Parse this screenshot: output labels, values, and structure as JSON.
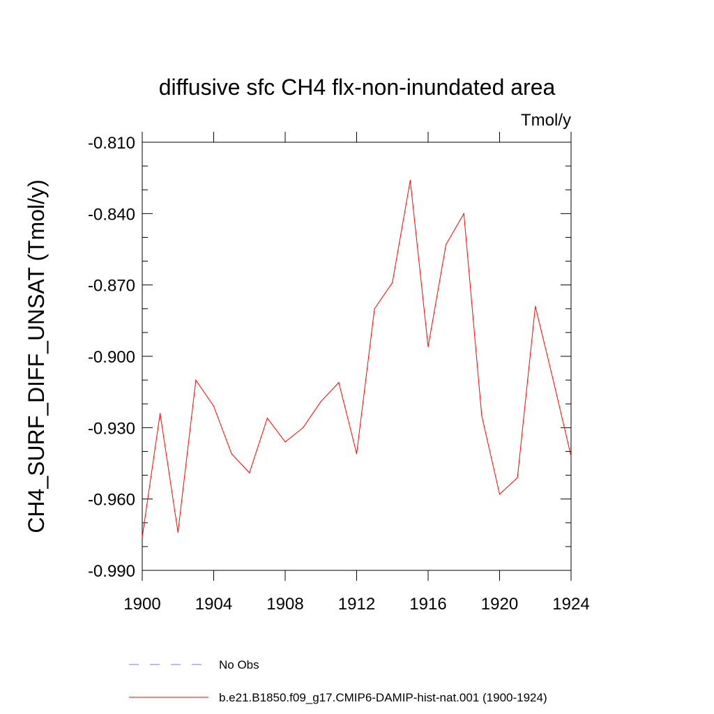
{
  "chart_data": {
    "type": "line",
    "title": "diffusive sfc CH4 flx-non-inundated area",
    "units_label": "Tmol/y",
    "ylabel": "CH4_SURF_DIFF_UNSAT  (Tmol/y)",
    "xlabel": "",
    "xlim": [
      1900,
      1924
    ],
    "ylim": [
      -0.99,
      -0.81
    ],
    "xticks": [
      1900,
      1904,
      1908,
      1912,
      1916,
      1920,
      1924
    ],
    "xtick_labels": [
      "1900",
      "1904",
      "1908",
      "1912",
      "1916",
      "1920",
      "1924"
    ],
    "yticks": [
      -0.99,
      -0.96,
      -0.93,
      -0.9,
      -0.87,
      -0.84,
      -0.81
    ],
    "ytick_labels": [
      "-0.990",
      "-0.960",
      "-0.930",
      "-0.900",
      "-0.870",
      "-0.840",
      "-0.810"
    ],
    "grid": false,
    "legend_position": "bottom",
    "series": [
      {
        "name": "b.e21.B1850.f09_g17.CMIP6-DAMIP-hist-nat.001 (1900-1924)",
        "color": "#ff0000",
        "style": "solid",
        "x": [
          1900,
          1901,
          1902,
          1903,
          1904,
          1905,
          1906,
          1907,
          1908,
          1909,
          1910,
          1911,
          1912,
          1913,
          1914,
          1915,
          1916,
          1917,
          1918,
          1919,
          1920,
          1921,
          1922,
          1923,
          1924
        ],
        "y": [
          -0.976,
          -0.924,
          -0.974,
          -0.91,
          -0.921,
          -0.941,
          -0.949,
          -0.926,
          -0.936,
          -0.93,
          -0.919,
          -0.911,
          -0.941,
          -0.88,
          -0.869,
          -0.826,
          -0.896,
          -0.853,
          -0.84,
          -0.925,
          -0.958,
          -0.951,
          -0.879,
          -0.91,
          -0.942
        ]
      }
    ],
    "legend": [
      {
        "label": "No Obs",
        "color": "#7b7bd6",
        "style": "dashed"
      },
      {
        "label": "b.e21.B1850.f09_g17.CMIP6-DAMIP-hist-nat.001 (1900-1924)",
        "color": "#ff0000",
        "style": "solid"
      }
    ]
  }
}
